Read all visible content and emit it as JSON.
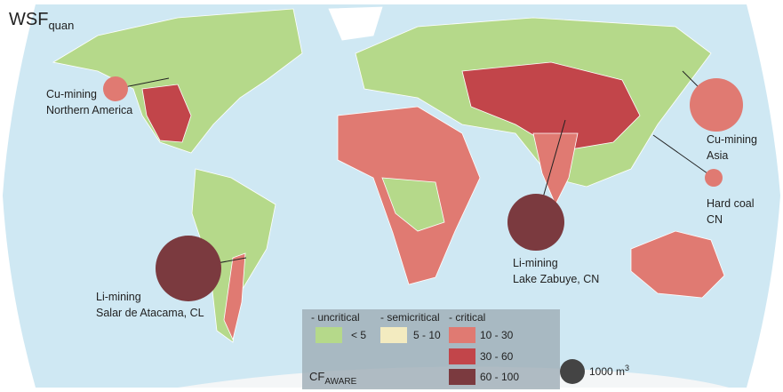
{
  "title": {
    "main": "WSF",
    "sub": "quan"
  },
  "annotations": [
    {
      "label": "Cu-mining",
      "sublabel": "Northern America"
    },
    {
      "label": "Cu-mining",
      "sublabel": "Asia"
    },
    {
      "label": "Hard coal",
      "sublabel": "CN"
    },
    {
      "label": "Li-mining",
      "sublabel": "Lake Zabuye, CN"
    },
    {
      "label": "Li-mining",
      "sublabel": "Salar de Atacama, CL"
    }
  ],
  "legend": {
    "groups": [
      "- uncritical",
      "- semicritical",
      "- critical"
    ],
    "classes": [
      {
        "label": "< 5",
        "color": "#b5d98a"
      },
      {
        "label": "5 - 10",
        "color": "#f3ebc0"
      },
      {
        "label": "10 - 30",
        "color": "#e07a72"
      },
      {
        "label": "30 - 60",
        "color": "#c2454a"
      },
      {
        "label": "60 - 100",
        "color": "#7b3a3f"
      }
    ],
    "axis_label": {
      "main": "CF",
      "sub": "AWARE"
    },
    "size_key": {
      "label": "1000 m",
      "sup": "3"
    }
  }
}
